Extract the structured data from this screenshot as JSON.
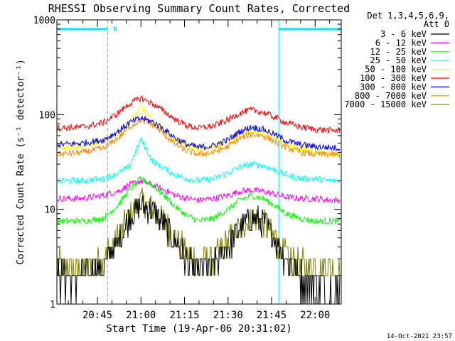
{
  "chart_data": {
    "type": "line",
    "title": "RHESSI Observing Summary Count Rates, Corrected",
    "xlabel": "Start Time (19-Apr-06 20:31:02)",
    "ylabel": "Corrected Count Rate (s⁻¹ detector⁻¹)",
    "yscale": "log",
    "ylim": [
      1,
      1000
    ],
    "xlim": [
      "20:31:02",
      "22:09:00"
    ],
    "y_ticks": [
      "1",
      "10",
      "100",
      "1000"
    ],
    "x_ticks": [
      "20:45",
      "21:00",
      "21:15",
      "21:30",
      "21:45",
      "22:00"
    ],
    "x_tick_minutes": [
      45,
      60,
      75,
      90,
      105,
      120
    ],
    "x_start_minutes": 31.03,
    "x_end_minutes": 129,
    "grid": false,
    "legend_header": [
      "Det 1,3,4,5,6,9,",
      "Att 0"
    ],
    "legend_position": "right",
    "footer_date": "14-Oct-2021 23:57",
    "night_flag_label": "N",
    "night_segments": [
      {
        "start_min": 31.03,
        "end_min": 48.5
      },
      {
        "start_min": 107.5,
        "end_min": 129
      }
    ],
    "x_minutes": [
      31,
      40,
      47,
      52,
      56,
      60,
      64,
      68,
      72,
      76,
      80,
      85,
      90,
      94,
      98,
      102,
      106,
      110,
      115,
      120,
      125,
      129
    ],
    "series": [
      {
        "name": "3 - 6 keV",
        "color": "#000000",
        "values": [
          2,
          1.8,
          2.5,
          4.5,
          8,
          11,
          10,
          7,
          4.5,
          2.8,
          2.2,
          2.5,
          4,
          6.5,
          8,
          7.5,
          5,
          3,
          2,
          1.5,
          1.4,
          1.3
        ]
      },
      {
        "name": "6 - 12 keV",
        "color": "#ff00ff",
        "values": [
          13,
          13,
          14,
          15.5,
          18,
          20,
          18,
          16,
          14,
          13,
          12.5,
          13,
          14,
          15.5,
          16,
          15.5,
          14.5,
          13.5,
          13,
          13,
          12.5,
          12.5
        ]
      },
      {
        "name": "12 - 25 keV",
        "color": "#00ff00",
        "values": [
          7.5,
          7.5,
          8,
          11,
          16,
          21,
          18,
          14,
          10.5,
          8.5,
          7.5,
          8,
          10,
          12.5,
          14,
          13,
          11,
          9,
          8,
          7.5,
          7.5,
          7.5
        ]
      },
      {
        "name": "25 - 50 keV",
        "color": "#00ffff",
        "values": [
          20,
          20,
          21,
          24,
          28,
          55,
          32,
          27,
          23,
          21,
          20,
          21,
          24,
          28,
          30,
          29,
          26,
          23,
          21,
          21,
          20,
          20
        ]
      },
      {
        "name": "50 - 100 keV",
        "color": "#ffff00",
        "values": [
          45,
          47,
          52,
          64,
          82,
          120,
          85,
          68,
          54,
          46,
          43,
          45,
          52,
          62,
          68,
          64,
          56,
          48,
          43,
          40,
          38,
          37
        ]
      },
      {
        "name": "100 - 300 keV",
        "color": "#ff0000",
        "values": [
          72,
          74,
          82,
          103,
          130,
          150,
          130,
          108,
          88,
          76,
          72,
          76,
          88,
          104,
          112,
          106,
          94,
          82,
          74,
          70,
          68,
          68
        ]
      },
      {
        "name": "300 - 800 keV",
        "color": "#0000ff",
        "values": [
          48,
          50,
          54,
          66,
          82,
          92,
          84,
          70,
          56,
          48,
          45,
          47,
          54,
          66,
          74,
          70,
          62,
          53,
          48,
          46,
          45,
          44
        ]
      },
      {
        "name": "800 - 7000 keV",
        "color": "#ff8800",
        "values": [
          38,
          40,
          44,
          56,
          74,
          88,
          78,
          62,
          48,
          41,
          38,
          40,
          46,
          56,
          62,
          60,
          52,
          45,
          40,
          38,
          38,
          37
        ]
      },
      {
        "name": "7000 - 15000 keV",
        "color": "#808000",
        "values": [
          2.5,
          2.5,
          3,
          5,
          8.5,
          12,
          10,
          7.5,
          5,
          3.2,
          2.8,
          3,
          4.5,
          6.5,
          8,
          7.5,
          5,
          3.2,
          2.6,
          2.4,
          2.3,
          2.3
        ]
      }
    ]
  }
}
